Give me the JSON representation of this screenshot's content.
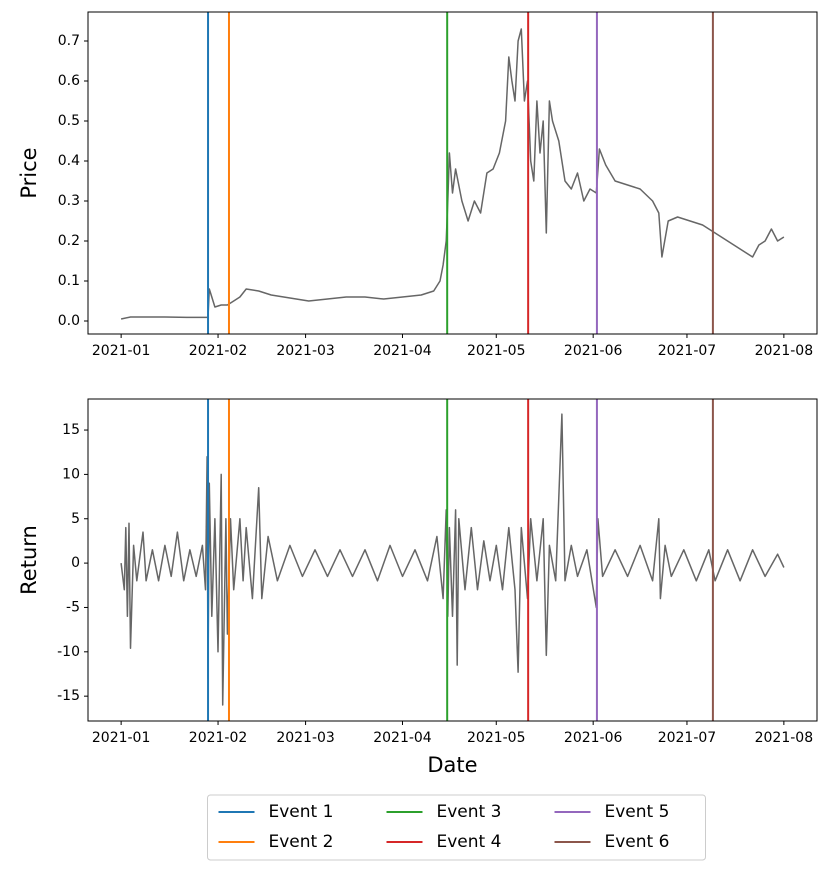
{
  "chart_data": [
    {
      "type": "line",
      "ylabel": "Price",
      "x": [
        0,
        3,
        7,
        14,
        21,
        27,
        27.8,
        28.2,
        29,
        30,
        32,
        34,
        36,
        38,
        40,
        44,
        48,
        52,
        56,
        60,
        66,
        72,
        78,
        84,
        90,
        96,
        100,
        102,
        103,
        104,
        104.5,
        105,
        106,
        107,
        109,
        111,
        113,
        115,
        117,
        119,
        121,
        123,
        124,
        125,
        126,
        127,
        128,
        129,
        130,
        131,
        132,
        133,
        134,
        135,
        136,
        137,
        138,
        140,
        142,
        144,
        146,
        148,
        150,
        152,
        153,
        155,
        158,
        162,
        166,
        170,
        172,
        173,
        175,
        178,
        182,
        186,
        190,
        194,
        198,
        202,
        204,
        206,
        208,
        210,
        212
      ],
      "series": [
        {
          "color": "#666666",
          "values": [
            0.005,
            0.01,
            0.01,
            0.01,
            0.009,
            0.009,
            0.009,
            0.08,
            0.06,
            0.035,
            0.04,
            0.04,
            0.05,
            0.06,
            0.08,
            0.075,
            0.065,
            0.06,
            0.055,
            0.05,
            0.055,
            0.06,
            0.06,
            0.055,
            0.06,
            0.065,
            0.075,
            0.1,
            0.14,
            0.2,
            0.3,
            0.42,
            0.32,
            0.38,
            0.3,
            0.25,
            0.3,
            0.27,
            0.37,
            0.38,
            0.42,
            0.5,
            0.66,
            0.6,
            0.55,
            0.7,
            0.73,
            0.55,
            0.6,
            0.4,
            0.35,
            0.55,
            0.42,
            0.5,
            0.22,
            0.55,
            0.5,
            0.45,
            0.35,
            0.33,
            0.37,
            0.3,
            0.33,
            0.32,
            0.43,
            0.39,
            0.35,
            0.34,
            0.33,
            0.3,
            0.27,
            0.16,
            0.25,
            0.26,
            0.25,
            0.24,
            0.22,
            0.2,
            0.18,
            0.16,
            0.19,
            0.2,
            0.23,
            0.2,
            0.21
          ]
        }
      ],
      "xlim": [
        -10.6,
        222.6
      ],
      "xticks": [
        {
          "value": 0,
          "label": "2021-01"
        },
        {
          "value": 31,
          "label": "2021-02"
        },
        {
          "value": 59,
          "label": "2021-03"
        },
        {
          "value": 90,
          "label": "2021-04"
        },
        {
          "value": 120,
          "label": "2021-05"
        },
        {
          "value": 151,
          "label": "2021-06"
        },
        {
          "value": 181,
          "label": "2021-07"
        },
        {
          "value": 212,
          "label": "2021-08"
        }
      ],
      "ylim": [
        -0.0325,
        0.7725
      ],
      "yticks": [
        {
          "value": 0,
          "label": "0.0"
        },
        {
          "value": 0.1,
          "label": "0.1"
        },
        {
          "value": 0.2,
          "label": "0.2"
        },
        {
          "value": 0.3,
          "label": "0.3"
        },
        {
          "value": 0.4,
          "label": "0.4"
        },
        {
          "value": 0.5,
          "label": "0.5"
        },
        {
          "value": 0.6,
          "label": "0.6"
        },
        {
          "value": 0.7,
          "label": "0.7"
        }
      ],
      "events": [
        {
          "color": "#1f77b4",
          "x": 27.8
        },
        {
          "color": "#ff7f0e",
          "x": 34.5
        },
        {
          "color": "#2ca02c",
          "x": 104.3
        },
        {
          "color": "#d62728",
          "x": 130.2
        },
        {
          "color": "#9467bd",
          "x": 152.2
        },
        {
          "color": "#8c564b",
          "x": 189.3
        }
      ]
    },
    {
      "type": "line",
      "ylabel": "Return",
      "xlabel": "Date",
      "x": [
        0,
        1,
        1.5,
        2,
        2.5,
        3,
        4,
        5,
        7,
        8,
        10,
        12,
        14,
        16,
        18,
        20,
        22,
        24,
        26,
        27,
        27.5,
        27.8,
        28.2,
        29,
        30,
        31,
        32,
        32.5,
        33.5,
        34,
        35,
        36,
        38,
        39,
        40,
        42,
        44,
        45,
        47,
        50,
        54,
        58,
        62,
        66,
        70,
        74,
        78,
        82,
        86,
        90,
        94,
        98,
        101,
        103,
        104,
        104.5,
        105,
        106,
        107,
        107.5,
        108,
        110,
        112,
        114,
        116,
        118,
        120,
        122,
        124,
        126,
        127,
        128,
        130,
        131,
        133,
        135,
        136,
        137,
        139,
        141,
        142,
        144,
        146,
        149,
        152,
        152.5,
        154,
        158,
        162,
        166,
        170,
        172,
        172.5,
        174,
        176,
        180,
        184,
        188,
        190,
        194,
        198,
        202,
        206,
        210,
        212
      ],
      "series": [
        {
          "color": "#666666",
          "values": [
            0,
            -3,
            4,
            -6,
            4.5,
            -9.6,
            2,
            -2,
            3.5,
            -2,
            1.5,
            -2,
            2,
            -1.5,
            3.5,
            -2,
            1.5,
            -1.5,
            2,
            -3,
            12,
            -13,
            9,
            -6,
            5,
            -10,
            10,
            -16,
            5,
            -8,
            5,
            -3,
            5,
            -2,
            4,
            -4,
            8.5,
            -4,
            3,
            -2,
            2,
            -1.5,
            1.5,
            -1.5,
            1.5,
            -1.5,
            1.5,
            -2,
            2,
            -1.5,
            1.5,
            -2,
            3,
            -4,
            6,
            -6,
            4,
            -6,
            6,
            -11.5,
            5,
            -3,
            4,
            -3,
            2.5,
            -2,
            2,
            -3,
            4,
            -3,
            -12.3,
            4,
            -4,
            5,
            -2,
            5,
            -10.4,
            2,
            -2,
            16.8,
            -2,
            2,
            -1.5,
            1.5,
            -5,
            5,
            -1.5,
            1.5,
            -1.5,
            2,
            -2,
            5,
            -4,
            2,
            -1.5,
            1.5,
            -2,
            1.5,
            -2,
            1.5,
            -2,
            1.5,
            -1.5,
            1,
            -0.5
          ]
        }
      ],
      "xlim": [
        -10.6,
        222.6
      ],
      "xticks": [
        {
          "value": 0,
          "label": "2021-01"
        },
        {
          "value": 31,
          "label": "2021-02"
        },
        {
          "value": 59,
          "label": "2021-03"
        },
        {
          "value": 90,
          "label": "2021-04"
        },
        {
          "value": 120,
          "label": "2021-05"
        },
        {
          "value": 151,
          "label": "2021-06"
        },
        {
          "value": 181,
          "label": "2021-07"
        },
        {
          "value": 212,
          "label": "2021-08"
        }
      ],
      "ylim": [
        -17.8,
        18.5
      ],
      "yticks": [
        -15,
        -10,
        -5,
        0,
        5,
        10,
        15
      ],
      "events": [
        {
          "name": "Event 1",
          "color": "#1f77b4",
          "x": 27.8
        },
        {
          "name": "Event 2",
          "color": "#ff7f0e",
          "x": 34.5
        },
        {
          "name": "Event 3",
          "color": "#2ca02c",
          "x": 104.3
        },
        {
          "name": "Event 4",
          "color": "#d62728",
          "x": 130.2
        },
        {
          "name": "Event 5",
          "color": "#9467bd",
          "x": 152.2
        },
        {
          "name": "Event 6",
          "color": "#8c564b",
          "x": 189.3
        }
      ],
      "legend": "lower center"
    }
  ]
}
